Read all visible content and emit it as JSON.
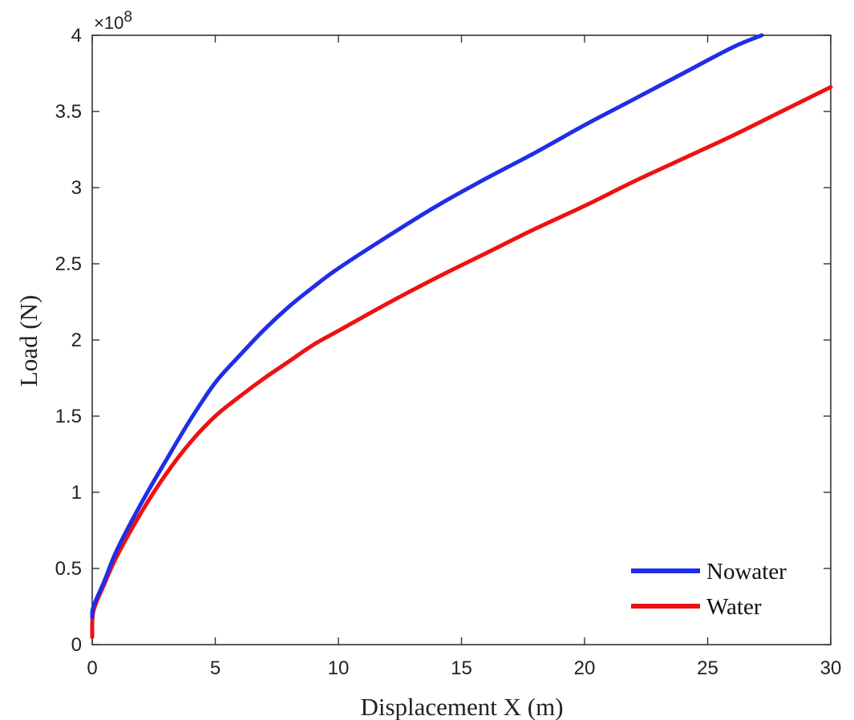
{
  "chart_data": {
    "type": "line",
    "title": "",
    "xlabel": "Displacement X (m)",
    "ylabel": "Load (N)",
    "y_exponent_label": "×10",
    "y_exponent_power": "8",
    "xlim": [
      0,
      30
    ],
    "ylim": [
      0,
      4
    ],
    "x_ticks": [
      0,
      5,
      10,
      15,
      20,
      25,
      30
    ],
    "x_tick_labels": [
      "0",
      "5",
      "10",
      "15",
      "20",
      "25",
      "30"
    ],
    "y_ticks": [
      0,
      0.5,
      1,
      1.5,
      2,
      2.5,
      3,
      3.5,
      4
    ],
    "y_tick_labels": [
      "0",
      "0.5",
      "1",
      "1.5",
      "2",
      "2.5",
      "3",
      "3.5",
      "4"
    ],
    "grid": false,
    "legend_position": "bottom-right",
    "series": [
      {
        "name": "Nowater",
        "color": "#1f2ee8",
        "x": [
          0,
          0.05,
          0.5,
          1,
          2,
          3,
          4,
          5,
          6,
          7,
          8,
          9,
          10,
          12,
          14,
          16,
          18,
          20,
          22,
          24,
          26,
          27.2
        ],
        "y": [
          0.18,
          0.25,
          0.42,
          0.62,
          0.93,
          1.21,
          1.48,
          1.72,
          1.9,
          2.07,
          2.22,
          2.35,
          2.47,
          2.68,
          2.88,
          3.06,
          3.23,
          3.41,
          3.58,
          3.75,
          3.92,
          4.0
        ]
      },
      {
        "name": "Water",
        "color": "#ee1111",
        "x": [
          0,
          0.05,
          0.5,
          1,
          2,
          3,
          4,
          5,
          6,
          7,
          8,
          9,
          10,
          12,
          14,
          16,
          18,
          20,
          22,
          24,
          26,
          28,
          30
        ],
        "y": [
          0.05,
          0.22,
          0.4,
          0.58,
          0.87,
          1.12,
          1.33,
          1.5,
          1.63,
          1.75,
          1.86,
          1.97,
          2.06,
          2.24,
          2.41,
          2.57,
          2.73,
          2.88,
          3.04,
          3.19,
          3.34,
          3.5,
          3.66
        ]
      }
    ]
  }
}
